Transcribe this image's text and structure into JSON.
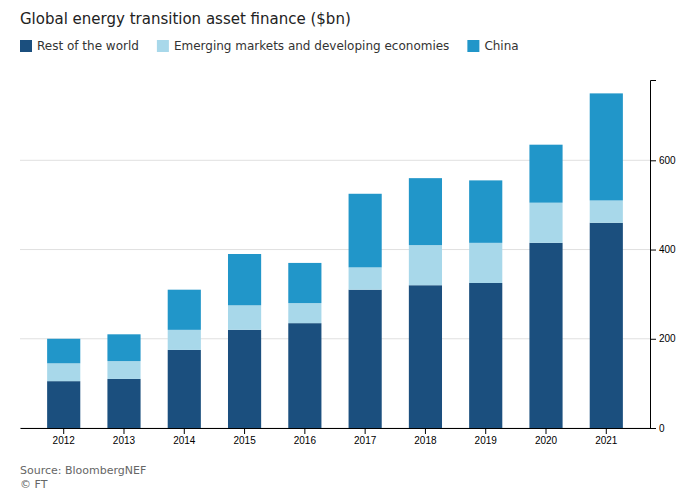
{
  "chart_data": {
    "type": "bar",
    "title": "Global energy transition asset finance ($bn)",
    "categories": [
      "2012",
      "2013",
      "2014",
      "2015",
      "2016",
      "2017",
      "2018",
      "2019",
      "2020",
      "2021"
    ],
    "series": [
      {
        "name": "Rest of the world",
        "color": "#1b4f7e",
        "values": [
          105,
          110,
          175,
          220,
          235,
          310,
          320,
          325,
          415,
          460
        ]
      },
      {
        "name": "Emerging markets and developing economies",
        "color": "#a8d8ea",
        "values": [
          40,
          40,
          45,
          55,
          45,
          50,
          90,
          90,
          90,
          50
        ]
      },
      {
        "name": "China",
        "color": "#2196c9",
        "values": [
          55,
          60,
          90,
          115,
          90,
          165,
          150,
          140,
          130,
          240
        ]
      }
    ],
    "stacked": true,
    "ylim": [
      0,
      780
    ],
    "yticks": [
      0,
      200,
      400,
      600
    ],
    "grid": true,
    "legend": "top",
    "source": "Source: BloombergNEF\n© FT"
  }
}
